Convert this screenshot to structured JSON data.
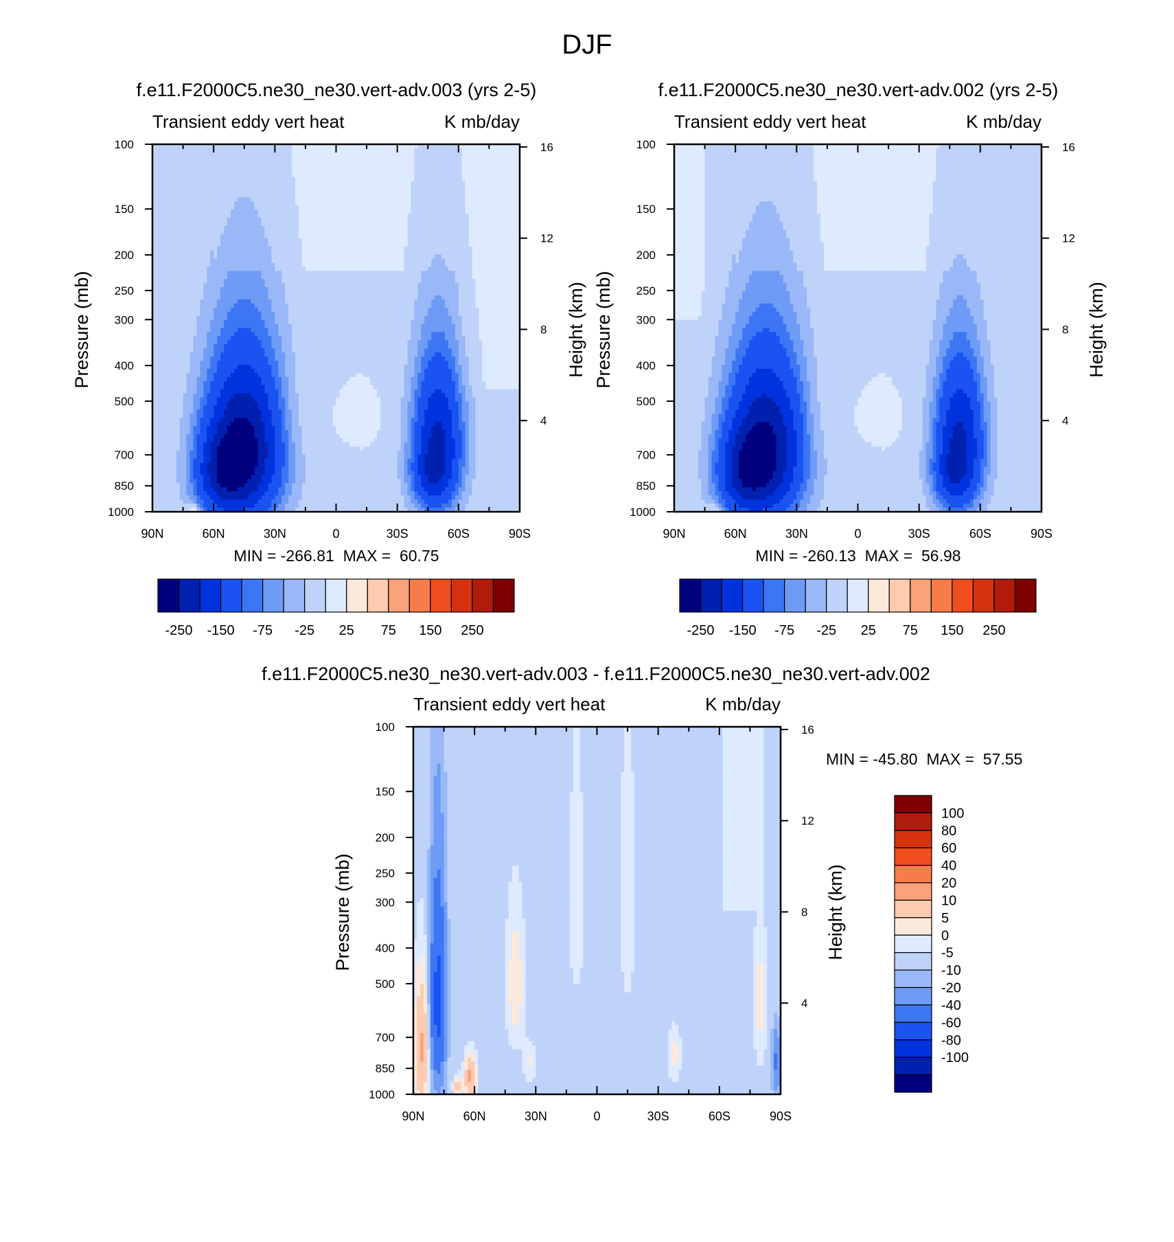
{
  "figure": {
    "title": "DJF"
  },
  "palettes": {
    "main": [
      "#00007f",
      "#0020b0",
      "#0033dd",
      "#1a53f2",
      "#3d76f5",
      "#6e9bf5",
      "#9ab8f7",
      "#bfd3fa",
      "#deeaff",
      "#fde9dc",
      "#fccbb0",
      "#f9a27c",
      "#f67d4a",
      "#f04e1e",
      "#d53210",
      "#b01c0c",
      "#7f0000"
    ],
    "diff": [
      "#00007f",
      "#0020b0",
      "#0033dd",
      "#1a53f2",
      "#3d76f5",
      "#6e9bf5",
      "#9ab8f7",
      "#bfd3fa",
      "#deeaff",
      "#fde9dc",
      "#fccbb0",
      "#f9a27c",
      "#f67d4a",
      "#f04e1e",
      "#d53210",
      "#b01c0c",
      "#7f0000"
    ]
  },
  "chart_data": [
    {
      "type": "heatmap",
      "id": "panel-1",
      "title": "f.e11.F2000C5.ne30_ne30.vert-adv.003 (yrs 2-5)",
      "subtitle_left": "Transient eddy vert heat",
      "subtitle_right": "K mb/day",
      "ylabel": "Pressure (mb)",
      "ylabel_right": "Height (km)",
      "x_ticks": [
        "90N",
        "60N",
        "30N",
        "0",
        "30S",
        "60S",
        "90S"
      ],
      "x_range": [
        90,
        -90
      ],
      "y_ticks": [
        100,
        150,
        200,
        250,
        300,
        400,
        500,
        700,
        850,
        1000
      ],
      "y_range": [
        100,
        1000
      ],
      "height_ticks": [
        16,
        12,
        8,
        4
      ],
      "stats": "MIN = -266.81  MAX =  60.75",
      "min": -266.81,
      "max": 60.75,
      "colorbar": {
        "orientation": "horizontal",
        "levels": [
          -250,
          -200,
          -150,
          -100,
          -75,
          -50,
          -25,
          0,
          25,
          50,
          75,
          100,
          150,
          200,
          250
        ],
        "labels": [
          "-250",
          "-150",
          "-75",
          "-25",
          "25",
          "75",
          "150",
          "250"
        ],
        "label_levels": [
          -250,
          -150,
          -75,
          -25,
          25,
          75,
          150,
          250
        ]
      },
      "features": [
        {
          "lat": 45,
          "p": 680,
          "w": 14,
          "h": 260,
          "amp": -270
        },
        {
          "lat": 58,
          "p": 800,
          "w": 9,
          "h": 150,
          "amp": -100
        },
        {
          "lat": -50,
          "p": 650,
          "w": 9,
          "h": 230,
          "amp": -210
        },
        {
          "lat": -45,
          "p": 820,
          "w": 7,
          "h": 110,
          "amp": -60
        },
        {
          "lat": 20,
          "p": 560,
          "w": 5,
          "h": 130,
          "amp": 14
        },
        {
          "lat": -10,
          "p": 550,
          "w": 6,
          "h": 40,
          "amp": 12
        },
        {
          "lat": 70,
          "p": 980,
          "w": 2,
          "h": 25,
          "amp": 60
        }
      ],
      "background": [
        {
          "lat_from": 60,
          "lat_to": -60,
          "p_from": 100,
          "p_to": 220,
          "amp": 6
        },
        {
          "lat_from": -60,
          "lat_to": -90,
          "p_from": 100,
          "p_to": 470,
          "amp": 6
        }
      ]
    },
    {
      "type": "heatmap",
      "id": "panel-2",
      "title": "f.e11.F2000C5.ne30_ne30.vert-adv.002 (yrs 2-5)",
      "subtitle_left": "Transient eddy vert heat",
      "subtitle_right": "K mb/day",
      "ylabel": "Pressure (mb)",
      "ylabel_right": "Height (km)",
      "x_ticks": [
        "90N",
        "60N",
        "30N",
        "0",
        "30S",
        "60S",
        "90S"
      ],
      "x_range": [
        90,
        -90
      ],
      "y_ticks": [
        100,
        150,
        200,
        250,
        300,
        400,
        500,
        700,
        850,
        1000
      ],
      "y_range": [
        100,
        1000
      ],
      "height_ticks": [
        16,
        12,
        8,
        4
      ],
      "stats": "MIN = -260.13  MAX =  56.98",
      "min": -260.13,
      "max": 56.98,
      "colorbar": {
        "orientation": "horizontal",
        "levels": [
          -250,
          -200,
          -150,
          -100,
          -75,
          -50,
          -25,
          0,
          25,
          50,
          75,
          100,
          150,
          200,
          250
        ],
        "labels": [
          "-250",
          "-150",
          "-75",
          "-25",
          "25",
          "75",
          "150",
          "250"
        ],
        "label_levels": [
          -250,
          -150,
          -75,
          -25,
          25,
          75,
          150,
          250
        ]
      },
      "features": [
        {
          "lat": 45,
          "p": 680,
          "w": 14,
          "h": 260,
          "amp": -262
        },
        {
          "lat": 58,
          "p": 800,
          "w": 9,
          "h": 150,
          "amp": -100
        },
        {
          "lat": -50,
          "p": 650,
          "w": 9,
          "h": 230,
          "amp": -210
        },
        {
          "lat": -45,
          "p": 820,
          "w": 7,
          "h": 110,
          "amp": -60
        },
        {
          "lat": 20,
          "p": 560,
          "w": 5,
          "h": 130,
          "amp": 14
        },
        {
          "lat": -10,
          "p": 550,
          "w": 6,
          "h": 40,
          "amp": 12
        },
        {
          "lat": 70,
          "p": 980,
          "w": 2,
          "h": 25,
          "amp": 40
        }
      ],
      "background": [
        {
          "lat_from": 60,
          "lat_to": -60,
          "p_from": 100,
          "p_to": 220,
          "amp": 6
        },
        {
          "lat_from": 90,
          "lat_to": 75,
          "p_from": 100,
          "p_to": 300,
          "amp": 6
        }
      ]
    },
    {
      "type": "heatmap",
      "id": "panel-diff",
      "title": "f.e11.F2000C5.ne30_ne30.vert-adv.003 - f.e11.F2000C5.ne30_ne30.vert-adv.002",
      "subtitle_left": "Transient eddy vert heat",
      "subtitle_right": "K mb/day",
      "ylabel": "Pressure (mb)",
      "ylabel_right": "Height (km)",
      "x_ticks": [
        "90N",
        "60N",
        "30N",
        "0",
        "30S",
        "60S",
        "90S"
      ],
      "x_range": [
        90,
        -90
      ],
      "y_ticks": [
        100,
        150,
        200,
        250,
        300,
        400,
        500,
        700,
        850,
        1000
      ],
      "y_range": [
        100,
        1000
      ],
      "height_ticks": [
        16,
        12,
        8,
        4
      ],
      "stats": "MIN = -45.80  MAX =  57.55",
      "min": -45.8,
      "max": 57.55,
      "colorbar": {
        "orientation": "vertical",
        "levels": [
          -100,
          -80,
          -60,
          -40,
          -20,
          -10,
          -5,
          0,
          5,
          10,
          20,
          40,
          60,
          80,
          100
        ],
        "labels": [
          "100",
          "80",
          "60",
          "40",
          "20",
          "10",
          "5",
          "0",
          "-5",
          "-10",
          "-20",
          "-40",
          "-60",
          "-80",
          "-100"
        ],
        "label_levels": [
          100,
          80,
          60,
          40,
          20,
          10,
          5,
          0,
          -5,
          -10,
          -20,
          -40,
          -60,
          -80,
          -100
        ]
      },
      "features": [
        {
          "lat": 78,
          "p": 560,
          "w": 2.5,
          "h": 230,
          "amp": -46
        },
        {
          "lat": 86,
          "p": 750,
          "w": 2.5,
          "h": 220,
          "amp": 24
        },
        {
          "lat": 62,
          "p": 900,
          "w": 2,
          "h": 90,
          "amp": 25
        },
        {
          "lat": 68,
          "p": 950,
          "w": 1.5,
          "h": 40,
          "amp": 18
        },
        {
          "lat": 40,
          "p": 500,
          "w": 3,
          "h": 150,
          "amp": 12
        },
        {
          "lat": 33,
          "p": 820,
          "w": 2,
          "h": 70,
          "amp": 8
        },
        {
          "lat": -38,
          "p": 780,
          "w": 2,
          "h": 90,
          "amp": 10
        },
        {
          "lat": -80,
          "p": 550,
          "w": 2,
          "h": 180,
          "amp": 10
        },
        {
          "lat": -88,
          "p": 820,
          "w": 1.5,
          "h": 110,
          "amp": -20
        },
        {
          "lat": 10,
          "p": 300,
          "w": 3,
          "h": 180,
          "amp": 5
        },
        {
          "lat": -15,
          "p": 300,
          "w": 3,
          "h": 200,
          "amp": 5
        }
      ],
      "background": [
        {
          "lat_from": 90,
          "lat_to": -90,
          "p_from": 100,
          "p_to": 1000,
          "amp": -2.5
        },
        {
          "lat_from": -62,
          "lat_to": -82,
          "p_from": 100,
          "p_to": 320,
          "amp": 3
        }
      ]
    }
  ]
}
